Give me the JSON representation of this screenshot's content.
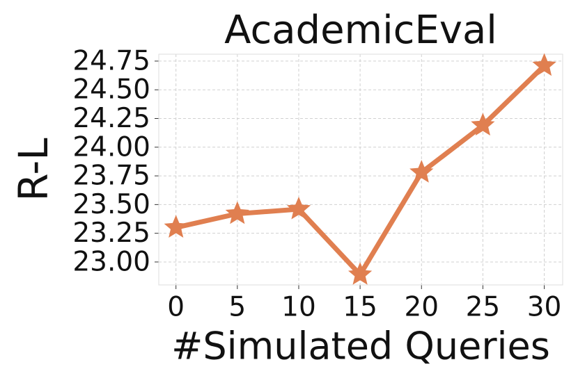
{
  "chart_data": {
    "type": "line",
    "title": "AcademicEval",
    "xlabel": "#Simulated Queries",
    "ylabel": "R-L",
    "x": [
      0,
      5,
      10,
      15,
      20,
      25,
      30
    ],
    "series": [
      {
        "color": "#e07f50",
        "marker": "star",
        "values": [
          23.3,
          23.42,
          23.46,
          22.89,
          23.78,
          24.19,
          24.71
        ]
      }
    ],
    "xlim": [
      -1.4,
      31.5
    ],
    "xticks": [
      0,
      5,
      10,
      15,
      20,
      25,
      30
    ],
    "ylim": [
      22.8,
      24.81
    ],
    "yticks": [
      {
        "value": 23.0,
        "label": "23.00"
      },
      23.25,
      {
        "value": 23.5,
        "label": "23.50"
      },
      23.75,
      {
        "value": 24.0,
        "label": "24.00"
      },
      24.25,
      {
        "value": 24.5,
        "label": "24.50"
      },
      24.75
    ],
    "grid": true
  }
}
